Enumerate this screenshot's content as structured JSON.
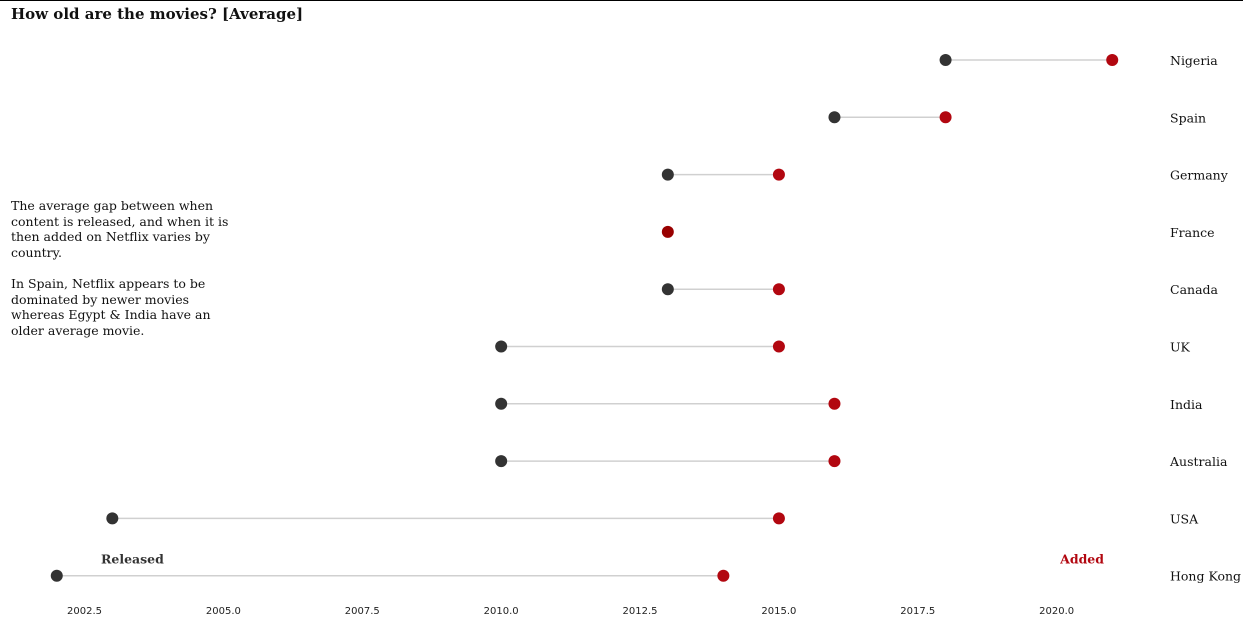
{
  "chart_data": {
    "type": "dumbbell",
    "title": "How old are the movies? [Average]",
    "annotation": [
      "The average gap between when content is released, and when it is then added on Netflix varies by country.",
      "In Spain, Netflix appears to be dominated by newer movies whereas Egypt & India have an older average movie."
    ],
    "series": [
      {
        "name": "Released",
        "color": "#333333"
      },
      {
        "name": "Added",
        "color": "#b20710"
      }
    ],
    "categories": [
      "Nigeria",
      "Spain",
      "Germany",
      "France",
      "Canada",
      "UK",
      "India",
      "Australia",
      "USA",
      "Hong Kong"
    ],
    "released": [
      2018,
      2016,
      2013,
      2013,
      2013,
      2010,
      2010,
      2010,
      2003,
      2002
    ],
    "added": [
      2021,
      2018,
      2015,
      2013,
      2015,
      2015,
      2016,
      2016,
      2015,
      2014
    ],
    "xlim": [
      2001.5,
      2021.5
    ],
    "xticks": [
      2002.5,
      2005.0,
      2007.5,
      2010.0,
      2012.5,
      2015.0,
      2017.5,
      2020.0
    ],
    "xtick_labels": [
      "2002.5",
      "2005.0",
      "2007.5",
      "2010.0",
      "2012.5",
      "2015.0",
      "2017.5",
      "2020.0"
    ],
    "grid": false,
    "legend": "bottom inline labels",
    "connector_color": "#d0d0d0",
    "overlap_color": "#990000"
  }
}
